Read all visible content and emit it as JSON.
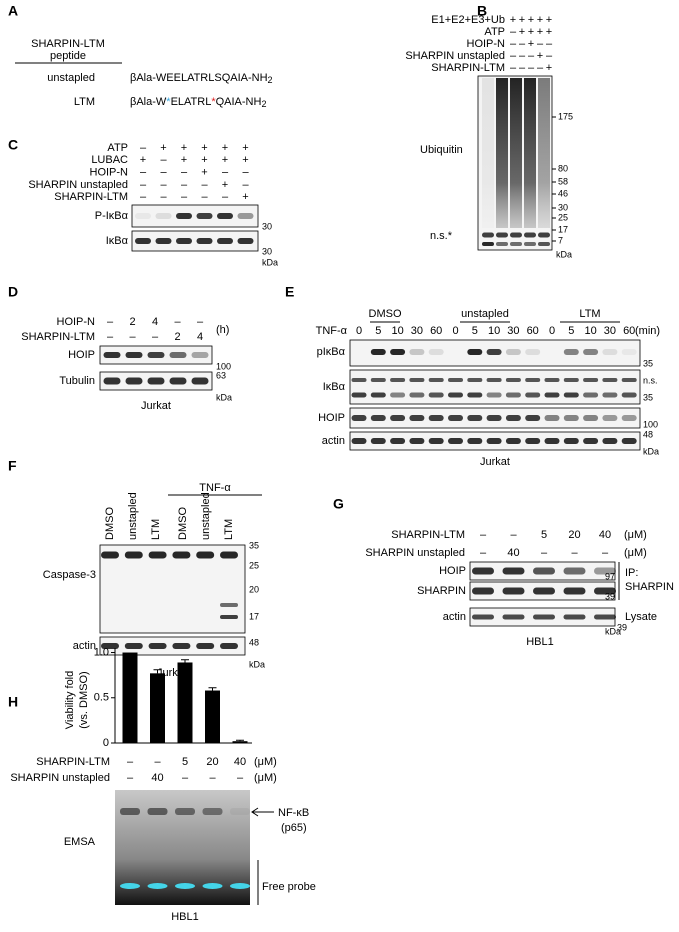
{
  "A": {
    "letter": "A",
    "header": [
      "SHARPIN-LTM",
      "peptide"
    ],
    "rows": [
      {
        "name": "unstapled",
        "sequence": [
          "βAla-WEELATRLSQAIA-NH",
          "2"
        ]
      },
      {
        "name": "LTM",
        "sequence": [
          "βAla-W",
          "*",
          "ELATRL",
          "*",
          "QAIA-NH",
          "2"
        ]
      }
    ]
  },
  "B": {
    "letter": "B",
    "conditions": [
      {
        "name": "E1+E2+E3+Ub",
        "lanes": [
          "+",
          "+",
          "+",
          "+",
          "+"
        ]
      },
      {
        "name": "ATP",
        "lanes": [
          "–",
          "+",
          "+",
          "+",
          "+"
        ]
      },
      {
        "name": "HOIP-N",
        "lanes": [
          "–",
          "–",
          "+",
          "–",
          "–"
        ]
      },
      {
        "name": "SHARPIN unstapled",
        "lanes": [
          "–",
          "–",
          "–",
          "+",
          "–"
        ]
      },
      {
        "name": "SHARPIN-LTM",
        "lanes": [
          "–",
          "–",
          "–",
          "–",
          "+"
        ]
      }
    ],
    "blot": "Ubiquitin",
    "band_note": "n.s.*",
    "markers": [
      "175",
      "80",
      "58",
      "46",
      "30",
      "25",
      "17",
      "7"
    ],
    "unit": "kDa"
  },
  "C": {
    "letter": "C",
    "conditions": [
      {
        "name": "ATP",
        "lanes": [
          "–",
          "+",
          "+",
          "+",
          "+",
          "+"
        ]
      },
      {
        "name": "LUBAC",
        "lanes": [
          "+",
          "–",
          "+",
          "+",
          "+",
          "+"
        ]
      },
      {
        "name": "HOIP-N",
        "lanes": [
          "–",
          "–",
          "–",
          "+",
          "–",
          "–"
        ]
      },
      {
        "name": "SHARPIN unstapled",
        "lanes": [
          "–",
          "–",
          "–",
          "–",
          "+",
          "–"
        ]
      },
      {
        "name": "SHARPIN-LTM",
        "lanes": [
          "–",
          "–",
          "–",
          "–",
          "–",
          "+"
        ]
      }
    ],
    "blots": [
      {
        "name": "P-IκBα",
        "marker": "30"
      },
      {
        "name": "IκBα",
        "marker": "30"
      }
    ],
    "unit": "kDa"
  },
  "D": {
    "letter": "D",
    "conditions": [
      {
        "name": "HOIP-N",
        "lanes": [
          "–",
          "2",
          "4",
          "–",
          "–"
        ]
      },
      {
        "name": "SHARPIN-LTM",
        "lanes": [
          "–",
          "–",
          "–",
          "2",
          "4"
        ]
      }
    ],
    "time_unit": "(h)",
    "blots": [
      {
        "name": "HOIP",
        "marker": "100"
      },
      {
        "name": "Tubulin",
        "marker": "63"
      }
    ],
    "unit": "kDa",
    "cell": "Jurkat"
  },
  "E": {
    "letter": "E",
    "groups": [
      "DMSO",
      "unstapled",
      "LTM"
    ],
    "treatment": "TNF-α",
    "times": [
      "0",
      "5",
      "10",
      "30",
      "60",
      "0",
      "5",
      "10",
      "30",
      "60",
      "0",
      "5",
      "10",
      "30",
      "60"
    ],
    "time_unit": "(min)",
    "blots": [
      "pIκBα",
      "IκBα",
      "HOIP",
      "actin"
    ],
    "markers": [
      "35",
      "n.s.",
      "35",
      "100",
      "48"
    ],
    "unit": "kDa",
    "cell": "Jurkat"
  },
  "F": {
    "letter": "F",
    "treatment": "TNF-α",
    "lanes": [
      "DMSO",
      "unstapled",
      "LTM",
      "DMSO",
      "unstapled",
      "LTM"
    ],
    "blots": [
      "Caspase-3",
      "actin"
    ],
    "markers": [
      "35",
      "25",
      "20",
      "17",
      "48"
    ],
    "unit": "kDa",
    "cell": "Jurkat"
  },
  "G": {
    "letter": "G",
    "conditions": [
      {
        "name": "SHARPIN-LTM",
        "lanes": [
          "–",
          "–",
          "5",
          "20",
          "40"
        ],
        "unit": "(μM)"
      },
      {
        "name": "SHARPIN unstapled",
        "lanes": [
          "–",
          "40",
          "–",
          "–",
          "–"
        ],
        "unit": "(μM)"
      }
    ],
    "blots": [
      "HOIP",
      "SHARPIN",
      "actin"
    ],
    "markers": [
      "97",
      "39",
      "39"
    ],
    "unit": "kDa",
    "ip": [
      "IP:",
      "SHARPIN"
    ],
    "lysate": "Lysate",
    "cell": "HBL1"
  },
  "H": {
    "letter": "H",
    "conditions": [
      {
        "name": "SHARPIN-LTM",
        "lanes": [
          "–",
          "–",
          "5",
          "20",
          "40"
        ],
        "unit": "(μM)"
      },
      {
        "name": "SHARPIN unstapled",
        "lanes": [
          "–",
          "40",
          "–",
          "–",
          "–"
        ],
        "unit": "(μM)"
      }
    ],
    "assay": "EMSA",
    "band": [
      "NF-κB",
      "(p65)"
    ],
    "probe": "Free probe",
    "cell": "HBL1"
  },
  "chart_data": {
    "type": "bar",
    "ylabel": [
      "Viability fold",
      "(vs. DMSO)"
    ],
    "values": [
      1.0,
      0.77,
      0.89,
      0.58,
      0.02
    ],
    "errors": [
      0,
      0.04,
      0.03,
      0.03,
      0.01
    ],
    "color": "#000000",
    "ylim": [
      0,
      1.05
    ],
    "yticks": [
      0,
      0.5,
      {
        "value": 1,
        "label": "1.0"
      }
    ]
  }
}
